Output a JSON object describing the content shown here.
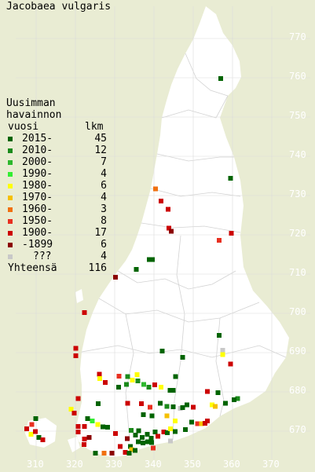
{
  "title": "Jacobaea vulgaris",
  "legend": {
    "heading_line1": "Uusimman",
    "heading_line2": "havainnon",
    "heading_line3_left": "vuosi",
    "heading_line3_right": "lkm",
    "items": [
      {
        "label": "2015-",
        "count": "45",
        "color": "#006400"
      },
      {
        "label": "2010-",
        "count": "12",
        "color": "#1a8a1a"
      },
      {
        "label": "2000-",
        "count": "7",
        "color": "#2db82d"
      },
      {
        "label": "1990-",
        "count": "4",
        "color": "#33ee33"
      },
      {
        "label": "1980-",
        "count": "6",
        "color": "#ffff00"
      },
      {
        "label": "1970-",
        "count": "4",
        "color": "#f5c000"
      },
      {
        "label": "1960-",
        "count": "3",
        "color": "#f07010"
      },
      {
        "label": "1950-",
        "count": "8",
        "color": "#e83020"
      },
      {
        "label": "1900-",
        "count": "17",
        "color": "#cc0000"
      },
      {
        "label": "-1899",
        "count": "6",
        "color": "#8b0000"
      },
      {
        "label": "???",
        "count": "4",
        "color": "#c8c8c8"
      }
    ],
    "total_label": "Yhteensä",
    "total_count": "116"
  },
  "map": {
    "land_color": "#ffffff",
    "background_color": "#e9ecd3",
    "gridline_color": "#dcdcdc",
    "y_ticks": [
      "770",
      "760",
      "750",
      "740",
      "730",
      "720",
      "710",
      "700",
      "690",
      "680",
      "670"
    ],
    "x_ticks": [
      "310",
      "320",
      "330",
      "340",
      "350",
      "360",
      "370"
    ],
    "observations": [
      {
        "x": 357,
        "y": 759.8,
        "c": "#006400"
      },
      {
        "x": 359.5,
        "y": 734.4,
        "c": "#006400"
      },
      {
        "x": 340.4,
        "y": 731.7,
        "c": "#f07010"
      },
      {
        "x": 341.8,
        "y": 728.6,
        "c": "#cc0000"
      },
      {
        "x": 343.6,
        "y": 726.5,
        "c": "#cc0000"
      },
      {
        "x": 343.8,
        "y": 721.7,
        "c": "#cc0000"
      },
      {
        "x": 344.4,
        "y": 720.9,
        "c": "#8b0000"
      },
      {
        "x": 359.7,
        "y": 720.4,
        "c": "#cc0000"
      },
      {
        "x": 356.6,
        "y": 718.6,
        "c": "#e83020"
      },
      {
        "x": 338.8,
        "y": 713.7,
        "c": "#006400"
      },
      {
        "x": 339.6,
        "y": 713.7,
        "c": "#006400"
      },
      {
        "x": 335.5,
        "y": 711.2,
        "c": "#006400"
      },
      {
        "x": 330.2,
        "y": 709.2,
        "c": "#8b0000"
      },
      {
        "x": 322.3,
        "y": 700.2,
        "c": "#cc0000"
      },
      {
        "x": 356.6,
        "y": 694.4,
        "c": "#006400"
      },
      {
        "x": 320.1,
        "y": 691.1,
        "c": "#cc0000"
      },
      {
        "x": 342.1,
        "y": 690.4,
        "c": "#006400"
      },
      {
        "x": 320.1,
        "y": 689.2,
        "c": "#cc0000"
      },
      {
        "x": 357.5,
        "y": 690.6,
        "c": "#c8c8c8"
      },
      {
        "x": 357.5,
        "y": 689.5,
        "c": "#ffff00"
      },
      {
        "x": 347.3,
        "y": 688.8,
        "c": "#006400"
      },
      {
        "x": 359.5,
        "y": 687.1,
        "c": "#cc0000"
      },
      {
        "x": 326.1,
        "y": 684.5,
        "c": "#cc0000"
      },
      {
        "x": 335.7,
        "y": 684.4,
        "c": "#ffff00"
      },
      {
        "x": 331.1,
        "y": 684.0,
        "c": "#e83020"
      },
      {
        "x": 333.3,
        "y": 683.9,
        "c": "#1a8a1a"
      },
      {
        "x": 334.5,
        "y": 683.0,
        "c": "#ffff00"
      },
      {
        "x": 335.9,
        "y": 682.8,
        "c": "#1a8a1a"
      },
      {
        "x": 326.2,
        "y": 683.4,
        "c": "#ffff00"
      },
      {
        "x": 345.5,
        "y": 683.9,
        "c": "#006400"
      },
      {
        "x": 327.6,
        "y": 682.4,
        "c": "#cc0000"
      },
      {
        "x": 333.0,
        "y": 681.9,
        "c": "#1a8a1a"
      },
      {
        "x": 337.4,
        "y": 681.9,
        "c": "#2db82d"
      },
      {
        "x": 338.7,
        "y": 681.2,
        "c": "#1a8a1a"
      },
      {
        "x": 340.2,
        "y": 681.8,
        "c": "#cc0000"
      },
      {
        "x": 331.0,
        "y": 681.2,
        "c": "#006400"
      },
      {
        "x": 341.8,
        "y": 681.2,
        "c": "#ffff00"
      },
      {
        "x": 344.1,
        "y": 680.4,
        "c": "#006400"
      },
      {
        "x": 344.9,
        "y": 680.4,
        "c": "#006400"
      },
      {
        "x": 353.6,
        "y": 680.1,
        "c": "#cc0000"
      },
      {
        "x": 356.3,
        "y": 679.8,
        "c": "#006400"
      },
      {
        "x": 361.3,
        "y": 678.3,
        "c": "#1a8a1a"
      },
      {
        "x": 360.4,
        "y": 678.0,
        "c": "#006400"
      },
      {
        "x": 320.7,
        "y": 678.3,
        "c": "#cc0000"
      },
      {
        "x": 325.8,
        "y": 677.0,
        "c": "#006400"
      },
      {
        "x": 333.3,
        "y": 677.1,
        "c": "#cc0000"
      },
      {
        "x": 336.8,
        "y": 677.0,
        "c": "#cc0000"
      },
      {
        "x": 339.0,
        "y": 676.1,
        "c": "#e83020"
      },
      {
        "x": 341.6,
        "y": 677.1,
        "c": "#006400"
      },
      {
        "x": 343.3,
        "y": 676.3,
        "c": "#1a8a1a"
      },
      {
        "x": 344.9,
        "y": 676.2,
        "c": "#006400"
      },
      {
        "x": 346.7,
        "y": 675.8,
        "c": "#c8c8c8"
      },
      {
        "x": 347.3,
        "y": 676.0,
        "c": "#006400"
      },
      {
        "x": 348.4,
        "y": 676.7,
        "c": "#006400"
      },
      {
        "x": 350.0,
        "y": 676.1,
        "c": "#cc0000"
      },
      {
        "x": 354.8,
        "y": 676.7,
        "c": "#ffff00"
      },
      {
        "x": 355.6,
        "y": 676.3,
        "c": "#f5c000"
      },
      {
        "x": 358.2,
        "y": 677.1,
        "c": "#006400"
      },
      {
        "x": 318.9,
        "y": 675.6,
        "c": "#ffff00"
      },
      {
        "x": 319.7,
        "y": 674.6,
        "c": "#cc0000"
      },
      {
        "x": 337.3,
        "y": 674.2,
        "c": "#006400"
      },
      {
        "x": 339.5,
        "y": 673.9,
        "c": "#006400"
      },
      {
        "x": 343.3,
        "y": 673.9,
        "c": "#f5c000"
      },
      {
        "x": 345.4,
        "y": 672.6,
        "c": "#ffff00"
      },
      {
        "x": 349.6,
        "y": 672.3,
        "c": "#006400"
      },
      {
        "x": 351.1,
        "y": 671.9,
        "c": "#e83020"
      },
      {
        "x": 352.1,
        "y": 671.9,
        "c": "#f5c000"
      },
      {
        "x": 353.0,
        "y": 672.0,
        "c": "#cc0000"
      },
      {
        "x": 353.6,
        "y": 672.6,
        "c": "#cc0000"
      },
      {
        "x": 323.1,
        "y": 673.2,
        "c": "#006400"
      },
      {
        "x": 324.3,
        "y": 672.6,
        "c": "#33ee33"
      },
      {
        "x": 325.7,
        "y": 671.7,
        "c": "#ffff00"
      },
      {
        "x": 327.0,
        "y": 671.1,
        "c": "#006400"
      },
      {
        "x": 328.2,
        "y": 671.0,
        "c": "#006400"
      },
      {
        "x": 309.9,
        "y": 673.2,
        "c": "#006400"
      },
      {
        "x": 308.9,
        "y": 671.7,
        "c": "#e83020"
      },
      {
        "x": 307.6,
        "y": 670.6,
        "c": "#cc0000"
      },
      {
        "x": 308.7,
        "y": 669.2,
        "c": "#ffff00"
      },
      {
        "x": 309.8,
        "y": 669.9,
        "c": "#cc0000"
      },
      {
        "x": 310.7,
        "y": 668.4,
        "c": "#006400"
      },
      {
        "x": 311.7,
        "y": 667.8,
        "c": "#cc0000"
      },
      {
        "x": 320.7,
        "y": 671.2,
        "c": "#cc0000"
      },
      {
        "x": 322.3,
        "y": 671.2,
        "c": "#cc0000"
      },
      {
        "x": 320.7,
        "y": 669.8,
        "c": "#cc0000"
      },
      {
        "x": 322.3,
        "y": 668.0,
        "c": "#cc0000"
      },
      {
        "x": 323.5,
        "y": 668.4,
        "c": "#8b0000"
      },
      {
        "x": 322.2,
        "y": 666.6,
        "c": "#cc0000"
      },
      {
        "x": 330.2,
        "y": 669.4,
        "c": "#cc0000"
      },
      {
        "x": 333.2,
        "y": 668.1,
        "c": "#8b0000"
      },
      {
        "x": 334.2,
        "y": 670.2,
        "c": "#1a8a1a"
      },
      {
        "x": 335.3,
        "y": 669.0,
        "c": "#006400"
      },
      {
        "x": 336.1,
        "y": 670.1,
        "c": "#006400"
      },
      {
        "x": 337.0,
        "y": 668.4,
        "c": "#006400"
      },
      {
        "x": 338.3,
        "y": 669.2,
        "c": "#006400"
      },
      {
        "x": 339.3,
        "y": 668.2,
        "c": "#006400"
      },
      {
        "x": 340.3,
        "y": 669.8,
        "c": "#006400"
      },
      {
        "x": 341.0,
        "y": 668.7,
        "c": "#cc0000"
      },
      {
        "x": 342.5,
        "y": 669.8,
        "c": "#cc0000"
      },
      {
        "x": 343.4,
        "y": 669.6,
        "c": "#006400"
      },
      {
        "x": 344.2,
        "y": 670.6,
        "c": "#ffff00"
      },
      {
        "x": 345.4,
        "y": 669.9,
        "c": "#006400"
      },
      {
        "x": 336.0,
        "y": 667.3,
        "c": "#006400"
      },
      {
        "x": 337.2,
        "y": 667.0,
        "c": "#006400"
      },
      {
        "x": 338.4,
        "y": 667.3,
        "c": "#006400"
      },
      {
        "x": 339.4,
        "y": 667.1,
        "c": "#006400"
      },
      {
        "x": 331.4,
        "y": 666.1,
        "c": "#cc0000"
      },
      {
        "x": 334.0,
        "y": 666.1,
        "c": "#006400"
      },
      {
        "x": 332.7,
        "y": 664.6,
        "c": "#cc0000"
      },
      {
        "x": 334.3,
        "y": 665.3,
        "c": "#f5c000"
      },
      {
        "x": 333.7,
        "y": 664.4,
        "c": "#006400"
      },
      {
        "x": 335.2,
        "y": 665.1,
        "c": "#006400"
      },
      {
        "x": 327.3,
        "y": 664.4,
        "c": "#f07010"
      },
      {
        "x": 329.3,
        "y": 664.4,
        "c": "#8b0000"
      },
      {
        "x": 325.1,
        "y": 664.4,
        "c": "#006400"
      },
      {
        "x": 339.8,
        "y": 665.7,
        "c": "#e83020"
      },
      {
        "x": 344.2,
        "y": 667.5,
        "c": "#c8c8c8"
      },
      {
        "x": 348.0,
        "y": 670.4,
        "c": "#006400"
      }
    ]
  }
}
